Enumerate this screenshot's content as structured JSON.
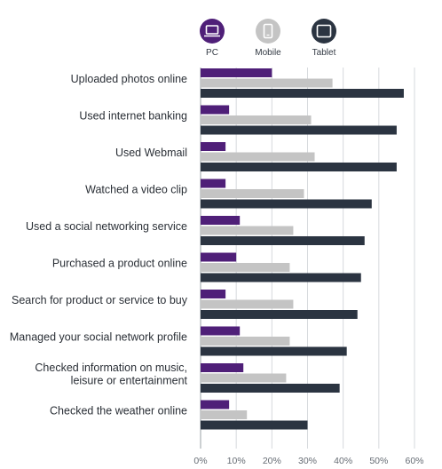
{
  "chart_data": {
    "type": "bar",
    "orientation": "horizontal",
    "title": "",
    "xlabel": "",
    "ylabel": "",
    "xlim": [
      0,
      60
    ],
    "x_ticks": [
      "0%",
      "10%",
      "20%",
      "30%",
      "40%",
      "50%",
      "60%"
    ],
    "grid": true,
    "legend_position": "top",
    "categories": [
      [
        "Uploaded photos online"
      ],
      [
        "Used internet banking"
      ],
      [
        "Used Webmail"
      ],
      [
        "Watched a video clip"
      ],
      [
        "Used a social networking service"
      ],
      [
        "Purchased a product online"
      ],
      [
        "Search for product or service to buy"
      ],
      [
        "Managed your social network profile"
      ],
      [
        "Checked information on music,",
        "leisure or entertainment"
      ],
      [
        "Checked the weather online"
      ]
    ],
    "series": [
      {
        "name": "PC",
        "color": "#4f1f78",
        "icon": "laptop-icon",
        "values": [
          20,
          8,
          7,
          7,
          11,
          10,
          7,
          11,
          12,
          8
        ]
      },
      {
        "name": "Mobile",
        "color": "#c4c4c4",
        "icon": "mobile-phone-icon",
        "values": [
          37,
          31,
          32,
          29,
          26,
          25,
          26,
          25,
          24,
          13
        ]
      },
      {
        "name": "Tablet",
        "color": "#2b3441",
        "icon": "tablet-icon",
        "values": [
          57,
          55,
          55,
          48,
          46,
          45,
          44,
          41,
          39,
          30
        ]
      }
    ]
  }
}
